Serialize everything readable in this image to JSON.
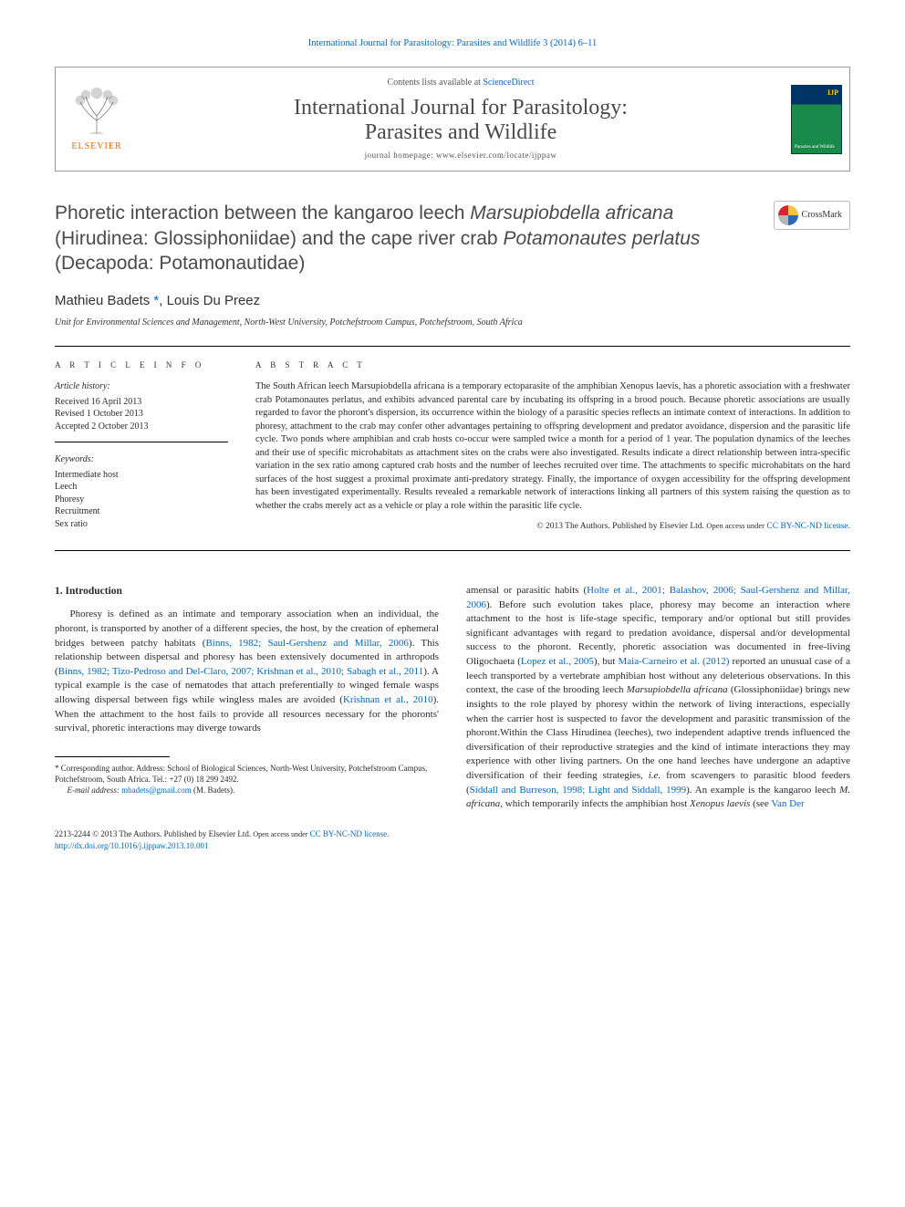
{
  "running_header": "International Journal for Parasitology: Parasites and Wildlife 3 (2014) 6–11",
  "masthead": {
    "contents_prefix": "Contents lists available at ",
    "contents_link": "ScienceDirect",
    "journal_line1": "International Journal for Parasitology:",
    "journal_line2": "Parasites and Wildlife",
    "homepage": "journal homepage: www.elsevier.com/locate/ijppaw",
    "publisher": "ELSEVIER",
    "cover_ijp": "IJP",
    "cover_sub": "Parasites and Wildlife"
  },
  "crossmark": "CrossMark",
  "title_html": "Phoretic interaction between the kangaroo leech <span class=\"italic\">Marsupiobdella africana</span> (Hirudinea: Glossiphoniidae) and the cape river crab <span class=\"italic\">Potamonautes perlatus</span> (Decapoda: Potamonautidae)",
  "authors_html": "Mathieu Badets <a href=\"#\" data-name=\"corresponding-link\" data-interactable=\"true\">*</a>, Louis Du Preez",
  "affiliation": "Unit for Environmental Sciences and Management, North-West University, Potchefstroom Campus, Potchefstroom, South Africa",
  "labels": {
    "article_info": "A R T I C L E   I N F O",
    "abstract": "A B S T R A C T",
    "history": "Article history:",
    "keywords": "Keywords:"
  },
  "history": {
    "received": "Received 16 April 2013",
    "revised": "Revised 1 October 2013",
    "accepted": "Accepted 2 October 2013"
  },
  "keywords": [
    "Intermediate host",
    "Leech",
    "Phoresy",
    "Recruitment",
    "Sex ratio"
  ],
  "abstract_html": "The South African leech <span class=\"italic\">Marsupiobdella africana</span> is a temporary ectoparasite of the amphibian <span class=\"italic\">Xenopus laevis</span>, has a phoretic association with a freshwater crab <span class=\"italic\">Potamonautes perlatus</span>, and exhibits advanced parental care by incubating its offspring in a brood pouch. Because phoretic associations are usually regarded to favor the phoront's dispersion, its occurrence within the biology of a parasitic species reflects an intimate context of interactions. In addition to phoresy, attachment to the crab may confer other advantages pertaining to offspring development and predator avoidance, dispersion and the parasitic life cycle. Two ponds where amphibian and crab hosts co-occur were sampled twice a month for a period of 1 year. The population dynamics of the leeches and their use of specific microhabitats as attachment sites on the crabs were also investigated. Results indicate a direct relationship between intra-specific variation in the sex ratio among captured crab hosts and the number of leeches recruited over time. The attachments to specific microhabitats on the hard surfaces of the host suggest a proximal proximate anti-predatory strategy. Finally, the importance of oxygen accessibility for the offspring development has been investigated experimentally. Results revealed a remarkable network of interactions linking all partners of this system raising the question as to whether the crabs merely act as a vehicle or play a role within the parasitic life cycle.",
  "copyright_html": "© 2013 The Authors. Published by Elsevier Ltd. <span style=\"font-size:8.5px\">Open access under</span> <a href=\"#\" data-name=\"license-link-abstract\" data-interactable=\"true\">CC BY-NC-ND license.</a>",
  "intro_heading": "1. Introduction",
  "col_left_html": "Phoresy is defined as an intimate and temporary association when an individual, the phoront, is transported by another of a different species, the host, by the creation of ephemeral bridges between patchy habitats (<a class=\"ref\" href=\"#\" data-name=\"ref-link\" data-interactable=\"true\">Binns, 1982; Saul-Gershenz and Millar, 2006</a>). This relationship between dispersal and phoresy has been extensively documented in arthropods (<a class=\"ref\" href=\"#\" data-name=\"ref-link\" data-interactable=\"true\">Binns, 1982; Tizo-Pedroso and Del-Claro, 2007; Krishnan et al., 2010; Sabagh et al., 2011</a>). A typical example is the case of nematodes that attach preferentially to winged female wasps allowing dispersal between figs while wingless males are avoided (<a class=\"ref\" href=\"#\" data-name=\"ref-link\" data-interactable=\"true\">Krishnan et al., 2010</a>). When the attachment to the host fails to provide all resources necessary for the phoronts' survival, phoretic interactions may diverge towards",
  "col_right_html": "amensal or parasitic habits (<a class=\"ref\" href=\"#\" data-name=\"ref-link\" data-interactable=\"true\">Holte et al., 2001; Balashov, 2006; Saul-Gershenz and Millar, 2006</a>). Before such evolution takes place, phoresy may become an interaction where attachment to the host is life-stage specific, temporary and/or optional but still provides significant advantages with regard to predation avoidance, dispersal and/or developmental success to the phoront. Recently, phoretic association was documented in free-living Oligochaeta (<a class=\"ref\" href=\"#\" data-name=\"ref-link\" data-interactable=\"true\">Lopez et al., 2005</a>), but <a class=\"ref\" href=\"#\" data-name=\"ref-link\" data-interactable=\"true\">Maia-Carneiro et al. (2012)</a> reported an unusual case of a leech transported by a vertebrate amphibian host without any deleterious observations. In this context, the case of the brooding leech <span class=\"italic\">Marsupiobdella africana</span> (Glossiphoniidae) brings new insights to the role played by phoresy within the network of living interactions, especially when the carrier host is suspected to favor the development and parasitic transmission of the phoront.Within the Class Hirudinea (leeches), two independent adaptive trends influenced the diversification of their reproductive strategies and the kind of intimate interactions they may experience with other living partners. On the one hand leeches have undergone an adaptive diversification of their feeding strategies, <span class=\"italic\">i.e.</span> from scavengers to parasitic blood feeders (<a class=\"ref\" href=\"#\" data-name=\"ref-link\" data-interactable=\"true\">Siddall and Burreson, 1998; Light and Siddall, 1999</a>). An example is the kangaroo leech <span class=\"italic\">M. africana</span>, which temporarily infects the amphibian host <span class=\"italic\">Xenopus laevis</span> (see <a class=\"ref\" href=\"#\" data-name=\"ref-link\" data-interactable=\"true\">Van Der</a>",
  "footnote": {
    "corresp": "* Corresponding author. Address: School of Biological Sciences, North-West University, Potchefstroom Campus, Potchefstroom, South Africa. Tel.: +27 (0) 18 299 2492.",
    "email_label": "E-mail address:",
    "email": "mbadets@gmail.com",
    "email_suffix": "(M. Badets)."
  },
  "footer": {
    "line1_html": "2213-2244 © 2013 The Authors. Published by Elsevier Ltd. <span style=\"font-size:8px\">Open access under</span> <a href=\"#\" data-name=\"license-link-footer\" data-interactable=\"true\">CC BY-NC-ND license.</a>",
    "doi_url": "http://dx.doi.org/10.1016/j.ijppaw.2013.10.001"
  },
  "colors": {
    "link": "#0066cc",
    "publisher": "#ff6600",
    "text": "#2a2a2a",
    "cm_red": "#d9232e",
    "cm_yellow": "#f6c244",
    "cm_blue": "#2c69b3",
    "cm_grey": "#b6b6b6"
  },
  "typography": {
    "body_pt": 11,
    "title_pt": 21,
    "journal_pt": 24,
    "abstract_pt": 10.5,
    "footnote_pt": 9
  }
}
